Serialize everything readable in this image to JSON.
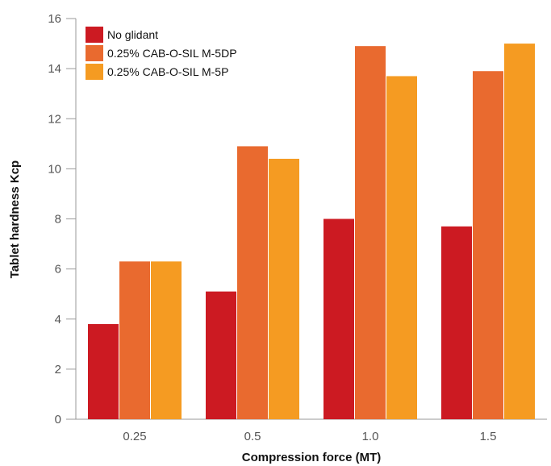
{
  "chart_data": {
    "type": "bar",
    "title": "",
    "xlabel": "Compression force (MT)",
    "ylabel": "Tablet hardness Kcp",
    "categories": [
      "0.25",
      "0.5",
      "1.0",
      "1.5"
    ],
    "ylim": [
      0,
      16
    ],
    "yticks": [
      0,
      2,
      4,
      6,
      8,
      10,
      12,
      14,
      16
    ],
    "grid": false,
    "legend_position": "top-left",
    "series": [
      {
        "name": "No glidant",
        "color": "#cc1a22",
        "values": [
          3.8,
          5.1,
          8.0,
          7.7
        ]
      },
      {
        "name": "0.25% CAB-O-SIL M-5DP",
        "color": "#e96a2f",
        "values": [
          6.3,
          10.9,
          14.9,
          13.9
        ]
      },
      {
        "name": "0.25% CAB-O-SIL M-5P",
        "color": "#f59b22",
        "values": [
          6.3,
          10.4,
          13.7,
          15.0
        ]
      }
    ]
  }
}
